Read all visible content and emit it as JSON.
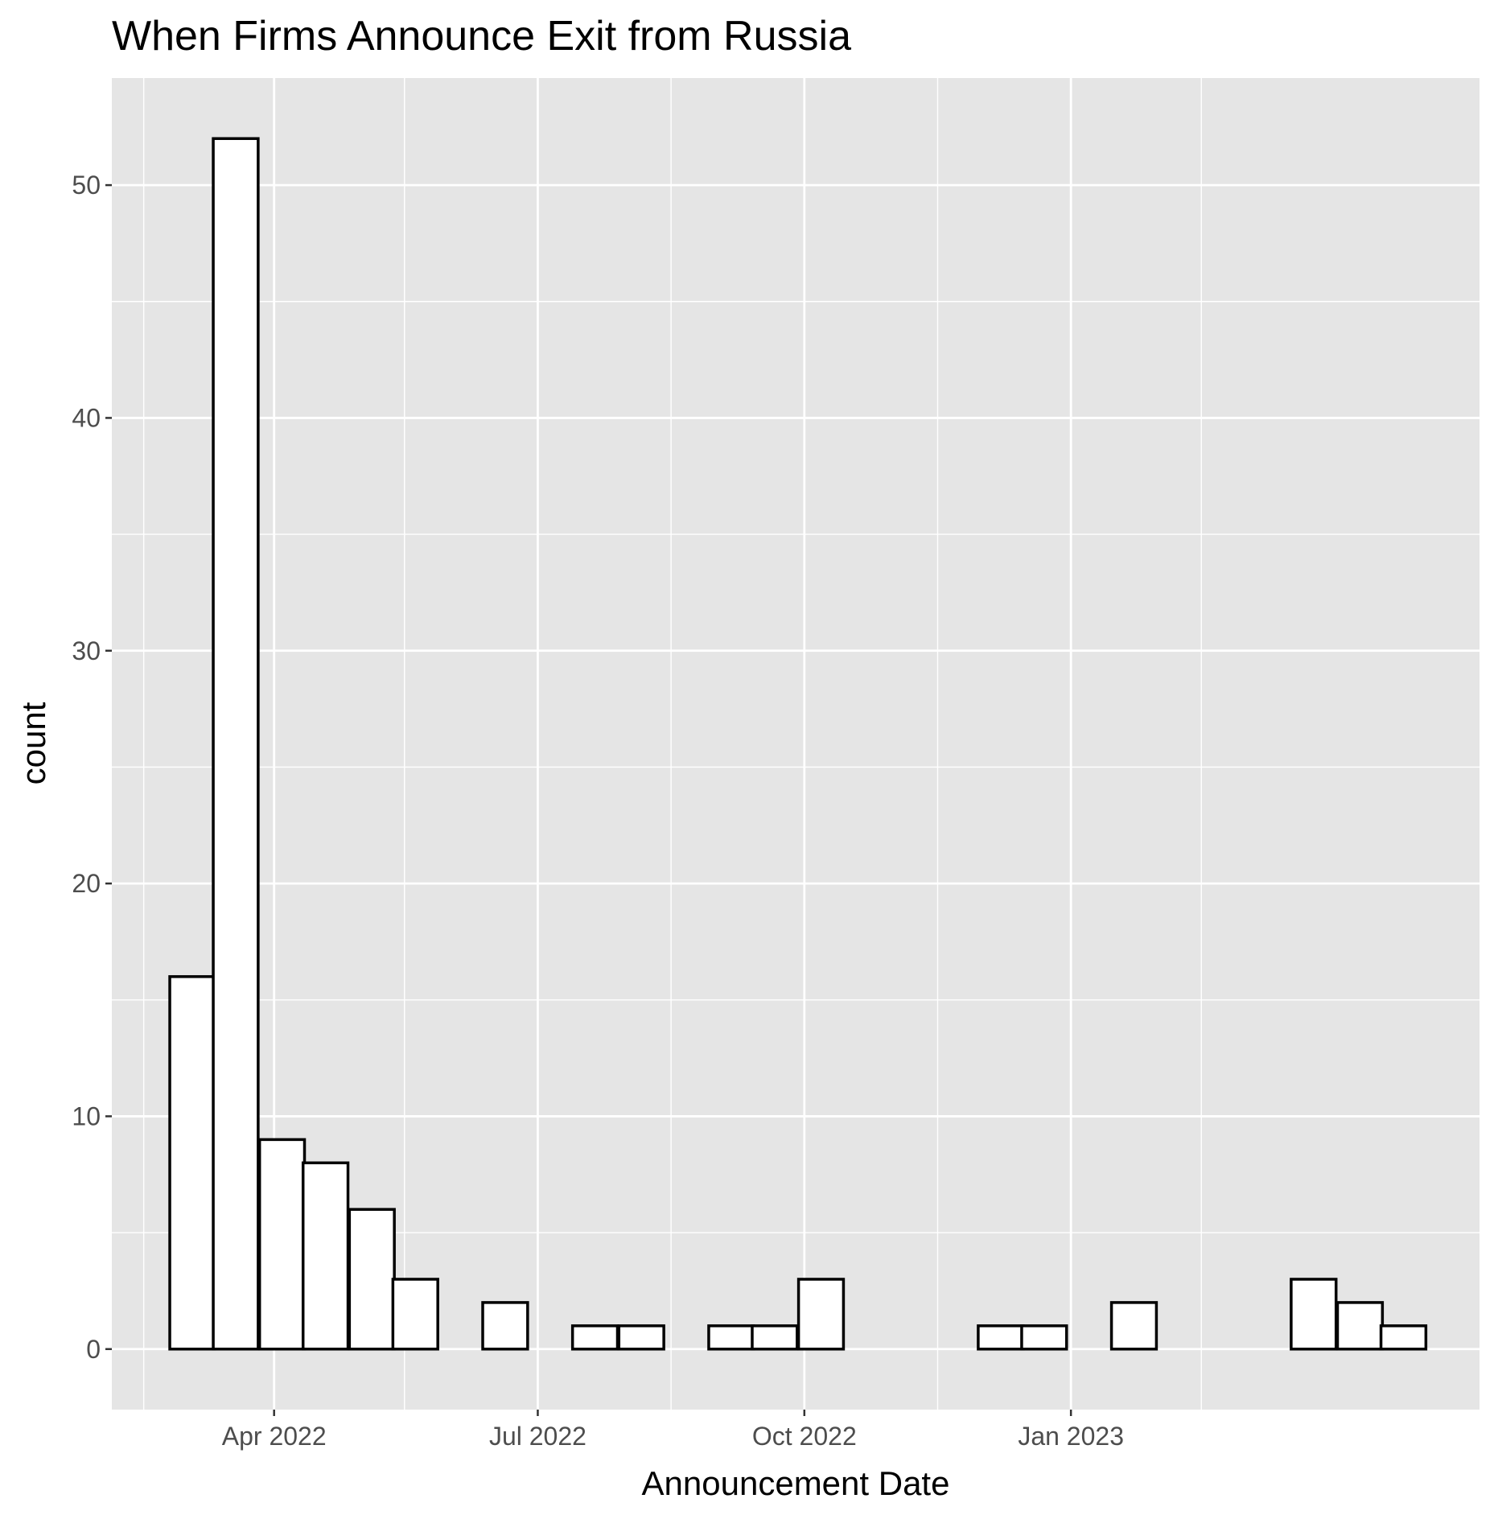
{
  "chart_data": {
    "type": "bar",
    "title": "When Firms Announce Exit from Russia",
    "xlabel": "Announcement Date",
    "ylabel": "count",
    "bin_width_days": 15.5,
    "bins": [
      {
        "start": "2022-02-24",
        "count": 16
      },
      {
        "start": "2022-03-11",
        "count": 52
      },
      {
        "start": "2022-03-27",
        "count": 9
      },
      {
        "start": "2022-04-11",
        "count": 8
      },
      {
        "start": "2022-04-27",
        "count": 6
      },
      {
        "start": "2022-05-12",
        "count": 3
      },
      {
        "start": "2022-05-28",
        "count": 0
      },
      {
        "start": "2022-06-12",
        "count": 2
      },
      {
        "start": "2022-06-28",
        "count": 0
      },
      {
        "start": "2022-07-13",
        "count": 1
      },
      {
        "start": "2022-07-29",
        "count": 1
      },
      {
        "start": "2022-08-13",
        "count": 0
      },
      {
        "start": "2022-08-29",
        "count": 1
      },
      {
        "start": "2022-09-13",
        "count": 1
      },
      {
        "start": "2022-09-29",
        "count": 3
      },
      {
        "start": "2022-10-14",
        "count": 0
      },
      {
        "start": "2022-10-30",
        "count": 0
      },
      {
        "start": "2022-11-14",
        "count": 0
      },
      {
        "start": "2022-11-30",
        "count": 1
      },
      {
        "start": "2022-12-15",
        "count": 1
      },
      {
        "start": "2022-12-31",
        "count": 0
      },
      {
        "start": "2023-01-15",
        "count": 2
      },
      {
        "start": "2023-01-31",
        "count": 0
      },
      {
        "start": "2023-02-15",
        "count": 0
      },
      {
        "start": "2023-03-03",
        "count": 0
      },
      {
        "start": "2023-03-18",
        "count": 3
      },
      {
        "start": "2023-04-03",
        "count": 2
      },
      {
        "start": "2023-04-18",
        "count": 1
      }
    ],
    "x_ticks": [
      {
        "label": "Apr 2022",
        "date": "2022-04-01"
      },
      {
        "label": "Jul 2022",
        "date": "2022-07-01"
      },
      {
        "label": "Oct 2022",
        "date": "2022-10-01"
      },
      {
        "label": "Jan 2023",
        "date": "2023-01-01"
      }
    ],
    "x_minor_dates": [
      "2022-02-15",
      "2022-05-16",
      "2022-08-16",
      "2022-11-16",
      "2023-02-15"
    ],
    "xlim": [
      "2022-02-04",
      "2023-05-22"
    ],
    "y_ticks": [
      "0",
      "10",
      "20",
      "30",
      "40",
      "50"
    ],
    "ylim": [
      -2.6,
      54.6
    ],
    "grid": true,
    "colors": {
      "panel": "#e5e5e5",
      "grid": "#ffffff",
      "bar_fill": "#ffffff",
      "bar_stroke": "#000000",
      "tick_text": "#4d4d4d",
      "tick_mark": "#333333"
    }
  }
}
